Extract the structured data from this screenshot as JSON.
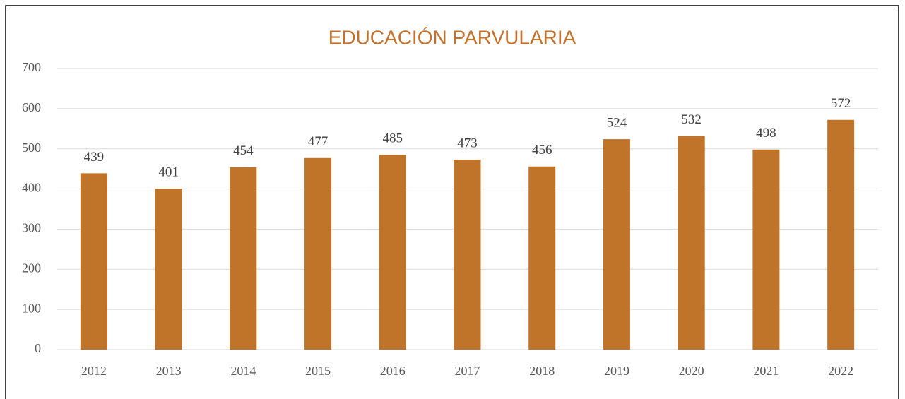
{
  "chart_data": {
    "type": "bar",
    "title": "EDUCACIÓN PARVULARIA",
    "categories": [
      "2012",
      "2013",
      "2014",
      "2015",
      "2016",
      "2017",
      "2018",
      "2019",
      "2020",
      "2021",
      "2022"
    ],
    "values": [
      439,
      401,
      454,
      477,
      485,
      473,
      456,
      524,
      532,
      498,
      572
    ],
    "color": "#c0742a",
    "title_color": "#c5702b",
    "ylim": [
      0,
      700
    ],
    "yticks": [
      0,
      100,
      200,
      300,
      400,
      500,
      600,
      700
    ],
    "grid": true
  }
}
